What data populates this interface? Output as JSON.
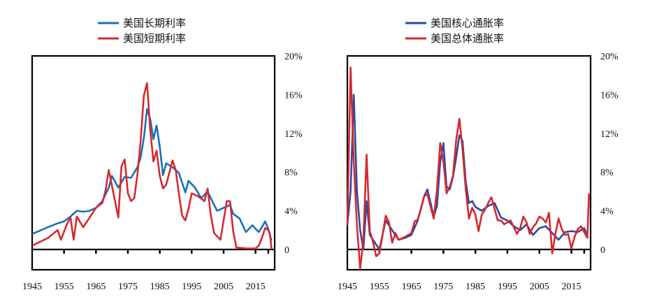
{
  "chart_data": [
    {
      "type": "line",
      "legend_placement": "top",
      "grid": false,
      "xlim": [
        1945,
        2021
      ],
      "ylim": [
        0,
        20
      ],
      "x_ticks": [
        "1945",
        "1955",
        "1965",
        "1975",
        "1985",
        "1995",
        "2005",
        "2015"
      ],
      "y_ticks": [
        "0",
        "4%",
        "8%",
        "12%",
        "16%",
        "20%"
      ],
      "series": [
        {
          "name": "美国长期利率",
          "color": "#1a6fb5",
          "x": [
            1945,
            1950,
            1953,
            1955,
            1957,
            1959,
            1961,
            1963,
            1965,
            1967,
            1969,
            1970,
            1972,
            1974,
            1976,
            1978,
            1979,
            1980,
            1981,
            1982,
            1983,
            1984,
            1985,
            1986,
            1987,
            1989,
            1991,
            1993,
            1994,
            1996,
            1998,
            2000,
            2002,
            2003,
            2005,
            2007,
            2008,
            2010,
            2012,
            2014,
            2016,
            2017,
            2018,
            2019,
            2020
          ],
          "y": [
            1.6,
            2.3,
            2.7,
            2.9,
            3.4,
            4.0,
            3.9,
            4.0,
            4.3,
            5.0,
            6.4,
            7.6,
            6.4,
            7.5,
            7.4,
            8.5,
            9.5,
            11.5,
            14.5,
            13.5,
            11.4,
            12.8,
            10.6,
            7.7,
            8.9,
            8.5,
            7.9,
            5.9,
            7.1,
            6.4,
            5.3,
            6.0,
            4.6,
            4.0,
            4.3,
            4.6,
            3.7,
            3.2,
            1.8,
            2.5,
            1.8,
            2.3,
            2.9,
            2.1,
            0.9
          ]
        },
        {
          "name": "美国短期利率",
          "color": "#d6292e",
          "x": [
            1945,
            1950,
            1953,
            1954,
            1956,
            1957,
            1958,
            1959,
            1961,
            1963,
            1965,
            1967,
            1968,
            1969,
            1970,
            1972,
            1973,
            1974,
            1975,
            1976,
            1977,
            1978,
            1979,
            1980,
            1981,
            1982,
            1983,
            1984,
            1985,
            1986,
            1987,
            1989,
            1990,
            1991,
            1992,
            1993,
            1994,
            1995,
            1997,
            1999,
            2000,
            2001,
            2002,
            2004,
            2006,
            2007,
            2008,
            2009,
            2012,
            2015,
            2016,
            2017,
            2018,
            2019,
            2019.5,
            2020
          ],
          "y": [
            0.4,
            1.2,
            2.0,
            1.0,
            2.7,
            3.3,
            1.0,
            3.4,
            2.3,
            3.3,
            4.3,
            4.8,
            6.1,
            8.2,
            6.6,
            3.3,
            8.6,
            9.3,
            5.8,
            5.0,
            5.3,
            7.8,
            11.2,
            15.9,
            17.2,
            12.4,
            9.1,
            10.2,
            7.6,
            6.3,
            6.7,
            9.2,
            8.2,
            5.7,
            3.5,
            3.0,
            4.2,
            5.8,
            5.5,
            5.0,
            6.3,
            3.5,
            1.7,
            1.0,
            5.0,
            5.0,
            1.9,
            0.2,
            0.1,
            0.1,
            0.4,
            1.2,
            2.2,
            2.0,
            1.6,
            0.1
          ]
        }
      ]
    },
    {
      "type": "line",
      "legend_placement": "top",
      "grid": false,
      "xlim": [
        1945,
        2021
      ],
      "ylim": [
        -2,
        20
      ],
      "x_ticks": [
        "1945",
        "1955",
        "1965",
        "1975",
        "1985",
        "1995",
        "2005",
        "2015"
      ],
      "y_ticks": [
        "0",
        "4%",
        "8%",
        "12%",
        "16%",
        "20%"
      ],
      "series": [
        {
          "name": "美国核心通胀率",
          "color": "#2c49a3",
          "x": [
            1945,
            1946,
            1947,
            1948,
            1949,
            1950,
            1951,
            1952,
            1953,
            1955,
            1957,
            1959,
            1961,
            1963,
            1965,
            1967,
            1969,
            1970,
            1971,
            1972,
            1973,
            1974,
            1975,
            1976,
            1977,
            1978,
            1979,
            1980,
            1981,
            1982,
            1983,
            1984,
            1985,
            1987,
            1989,
            1991,
            1993,
            1995,
            1997,
            1999,
            2001,
            2003,
            2005,
            2007,
            2009,
            2011,
            2013,
            2015,
            2017,
            2019,
            2020
          ],
          "y": [
            2.5,
            6,
            16,
            6,
            2,
            0,
            5,
            1.5,
            1,
            0,
            3,
            2,
            1,
            1.2,
            1.5,
            3,
            5.5,
            6.2,
            4.8,
            3.4,
            4.5,
            9,
            11,
            6.5,
            6.2,
            7.5,
            9.5,
            11.8,
            11.2,
            7,
            4.8,
            5,
            4.4,
            4,
            4.5,
            4.8,
            3.3,
            3,
            2.4,
            2,
            2.6,
            1.5,
            2.2,
            2.4,
            1.7,
            1,
            1.8,
            1.9,
            1.8,
            2.2,
            1.5
          ]
        },
        {
          "name": "美国总体通胀率",
          "color": "#d6292e",
          "x": [
            1945,
            1946,
            1947,
            1948,
            1949,
            1950,
            1951,
            1952,
            1953,
            1954,
            1955,
            1956,
            1957,
            1958,
            1959,
            1960,
            1961,
            1963,
            1965,
            1966,
            1967,
            1968,
            1969,
            1970,
            1971,
            1972,
            1973,
            1974,
            1975,
            1976,
            1977,
            1978,
            1979,
            1980,
            1981,
            1982,
            1983,
            1984,
            1985,
            1986,
            1987,
            1988,
            1989,
            1990,
            1991,
            1992,
            1993,
            1994,
            1995,
            1996,
            1997,
            1998,
            1999,
            2000,
            2001,
            2002,
            2003,
            2004,
            2005,
            2006,
            2007,
            2008,
            2009,
            2010,
            2011,
            2012,
            2013,
            2014,
            2015,
            2016,
            2017,
            2018,
            2019,
            2020,
            2020.5
          ],
          "y": [
            2.5,
            18.8,
            9,
            2.5,
            -2,
            1,
            9.8,
            1.9,
            0.8,
            -0.7,
            -0.4,
            1.5,
            3.5,
            2.8,
            0.7,
            1.7,
            1,
            1.3,
            1.7,
            2.9,
            3.1,
            4.2,
            5.5,
            5.7,
            4.4,
            3.2,
            6.2,
            11.0,
            9.1,
            5.8,
            6.5,
            7.6,
            11.3,
            13.5,
            10.3,
            6.2,
            3.2,
            4.3,
            3.6,
            1.9,
            3.6,
            4.1,
            4.8,
            5.4,
            4.2,
            3.0,
            3.0,
            2.6,
            2.8,
            3.0,
            2.3,
            1.6,
            2.2,
            3.4,
            2.8,
            1.6,
            2.3,
            2.7,
            3.4,
            3.2,
            2.8,
            3.8,
            -0.4,
            1.6,
            3.2,
            2.1,
            1.5,
            1.6,
            0.1,
            1.3,
            2.1,
            2.4,
            1.8,
            1.2,
            5.8
          ]
        }
      ]
    }
  ]
}
